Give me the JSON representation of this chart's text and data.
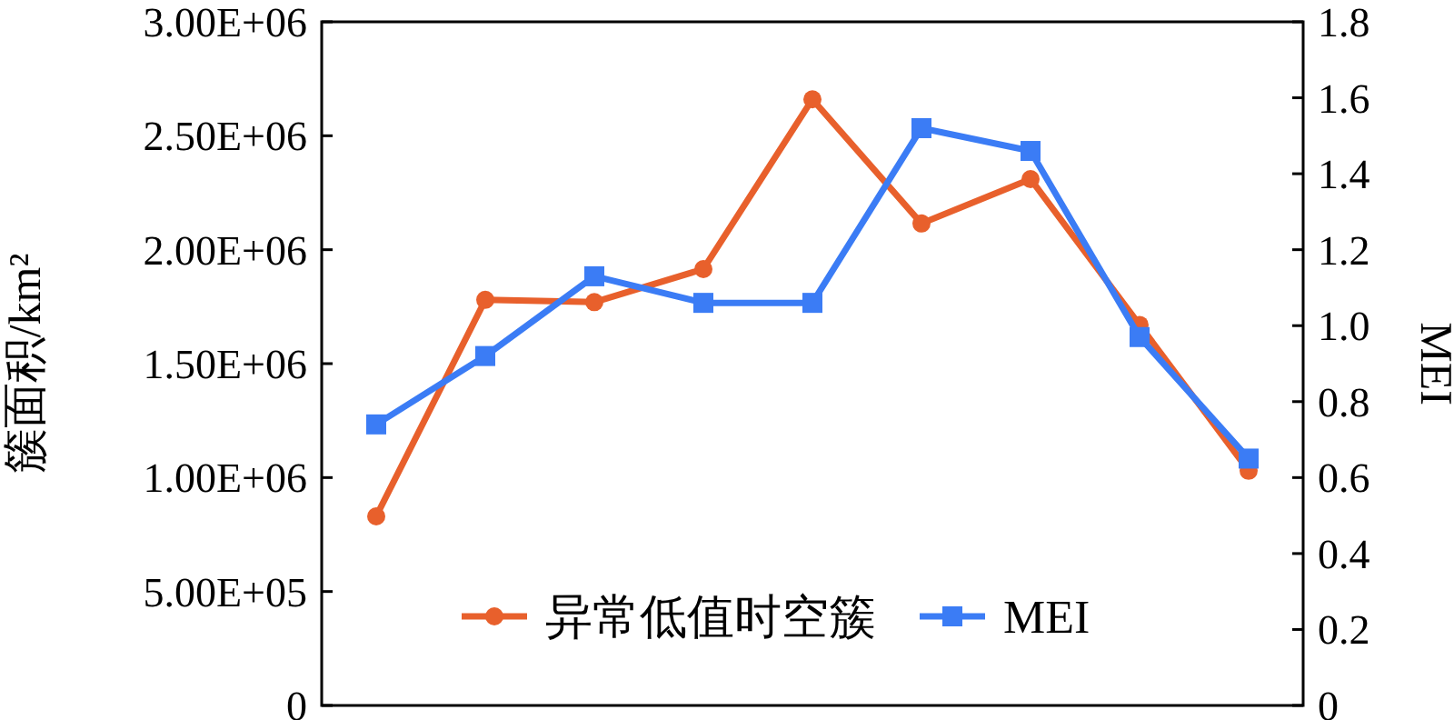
{
  "chart_data": {
    "type": "line",
    "categories": [
      null,
      null,
      null,
      null,
      null,
      null,
      null,
      null,
      null
    ],
    "ylabel": "簇面积/km²",
    "y2label": "MEI",
    "ylim": [
      0,
      3000000
    ],
    "yticks": [
      {
        "value": 0,
        "label": "0"
      },
      {
        "value": 500000,
        "label": "5.00E+05"
      },
      {
        "value": 1000000,
        "label": "1.00E+06"
      },
      {
        "value": 1500000,
        "label": "1.50E+06"
      },
      {
        "value": 2000000,
        "label": "2.00E+06"
      },
      {
        "value": 2500000,
        "label": "2.50E+06"
      },
      {
        "value": 3000000,
        "label": "3.00E+06"
      }
    ],
    "y2lim": [
      0,
      1.8
    ],
    "y2ticks": [
      0,
      0.2,
      0.4,
      0.6,
      0.8,
      {
        "value": 1.0,
        "label": "1.0"
      },
      1.2,
      1.4,
      1.6,
      1.8
    ],
    "legend": "bottom",
    "grid": false,
    "series": [
      {
        "name": "异常低值时空簇",
        "color": "#e8602c",
        "marker": "circle",
        "values": [
          830000,
          1780000,
          1770000,
          1915000,
          2660000,
          2115000,
          2310000,
          1670000,
          1030000
        ]
      },
      {
        "name": "MEI",
        "color": "#3b7cf5",
        "marker": "square",
        "axis": "y2",
        "values": [
          0.74,
          0.92,
          1.13,
          1.06,
          1.06,
          1.52,
          1.46,
          0.97,
          0.65
        ]
      }
    ]
  }
}
